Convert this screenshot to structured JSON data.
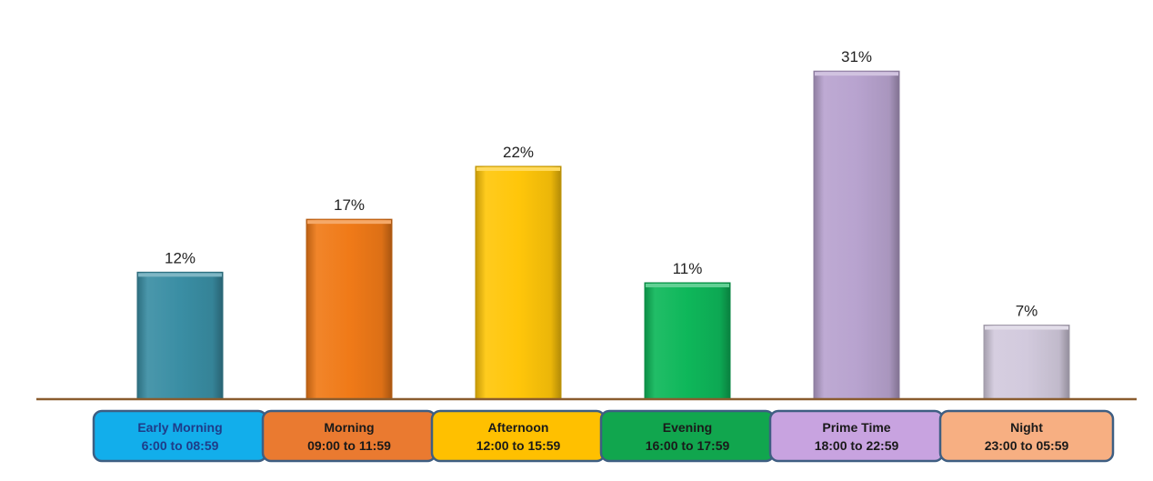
{
  "chart_data": {
    "type": "bar",
    "categories": [
      "Early Morning",
      "Morning",
      "Afternoon",
      "Evening",
      "Prime Time",
      "Night"
    ],
    "time_ranges": [
      "6:00 to 08:59",
      "09:00 to 11:59",
      "12:00 to 15:59",
      "16:00 to 17:59",
      "18:00 to 22:59",
      "23:00 to 05:59"
    ],
    "values": [
      12,
      17,
      22,
      11,
      31,
      7
    ],
    "value_labels": [
      "12%",
      "17%",
      "22%",
      "11%",
      "31%",
      "7%"
    ],
    "unit": "%",
    "ylim": [
      0,
      36
    ],
    "grid": false,
    "legend": "none",
    "bar_colors": [
      "#3A8EA4",
      "#F07A18",
      "#FFC60A",
      "#0EB75A",
      "#B8A3CF",
      "#D2CADD"
    ],
    "label_box_colors": [
      "#12AEEB",
      "#EA7A30",
      "#FFC000",
      "#11A64E",
      "#C8A3E0",
      "#F7AF82"
    ],
    "label_box_border": "#3E5E82",
    "axis_color": "#8A5C2E"
  }
}
